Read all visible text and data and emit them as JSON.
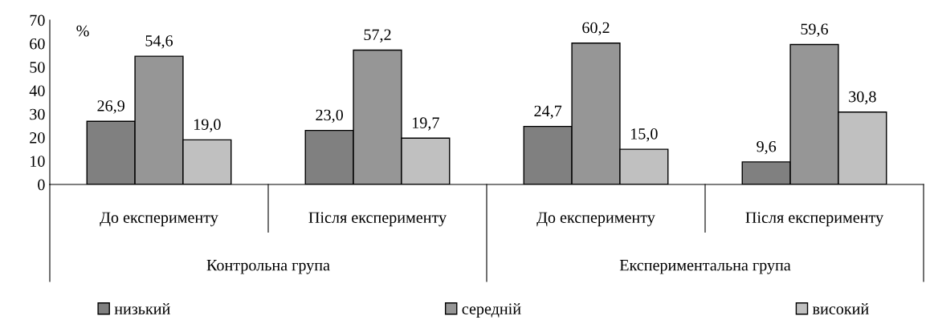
{
  "chart_data": {
    "type": "bar",
    "ylabel": "%",
    "categories": [
      "До експерименту",
      "Після експерименту",
      "До експерименту",
      "Після експерименту"
    ],
    "series": [
      {
        "name": "низький",
        "color": "#808080",
        "values": [
          26.9,
          23.0,
          24.7,
          9.6
        ],
        "value_labels": [
          "26,9",
          "23,0",
          "24,7",
          "9,6"
        ]
      },
      {
        "name": "середній",
        "color": "#969696",
        "values": [
          54.6,
          57.2,
          60.2,
          59.6
        ],
        "value_labels": [
          "54,6",
          "57,2",
          "60,2",
          "59,6"
        ]
      },
      {
        "name": "високий",
        "color": "#c0c0c0",
        "values": [
          19.0,
          19.7,
          15.0,
          30.8
        ],
        "value_labels": [
          "19,0",
          "19,7",
          "15,0",
          "30,8"
        ]
      }
    ],
    "annotations": [
      "Контрольна група",
      "Експериментальна група"
    ],
    "ylim": [
      0,
      70
    ],
    "yticks": [
      0,
      10,
      20,
      30,
      40,
      50,
      60,
      70
    ],
    "grid": false,
    "legend": "bottom"
  }
}
